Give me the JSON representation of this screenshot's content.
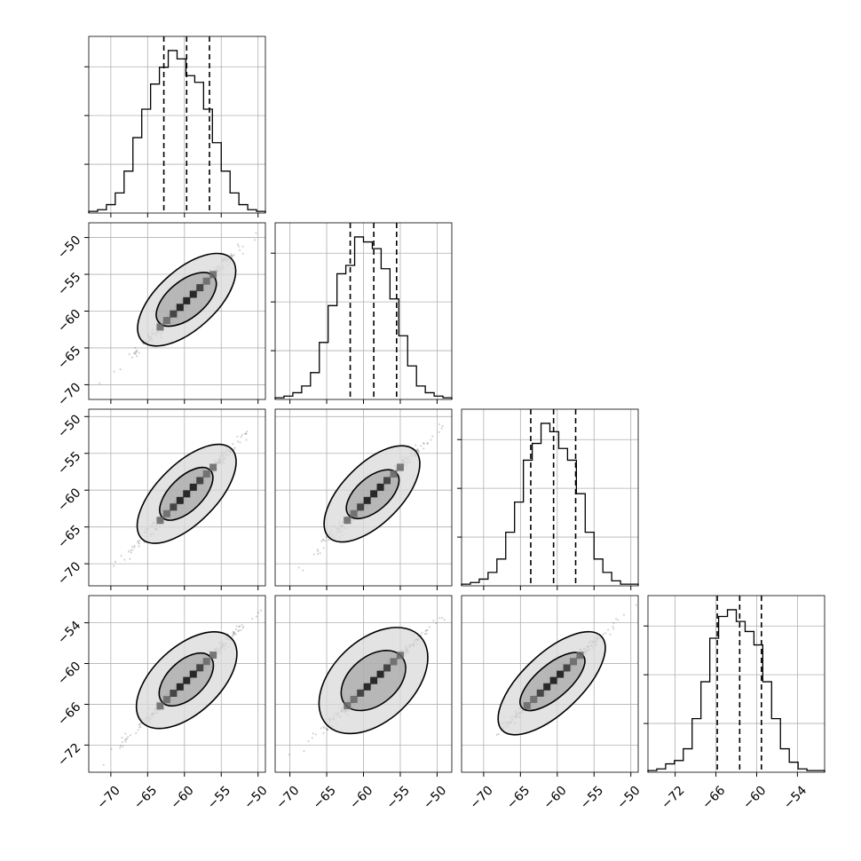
{
  "chart_data": {
    "type": "scatter",
    "kind": "corner-plot",
    "n_params": 4,
    "grid": true,
    "colors": {
      "line": "#000000",
      "grid": "#b0b0b0",
      "samples": "#555555",
      "frame": "#000000"
    },
    "axes": [
      {
        "range": [
          -73,
          -49
        ],
        "ticks": [
          -70,
          -65,
          -60,
          -55,
          -50
        ],
        "tick_labels": [
          "−70",
          "−65",
          "−60",
          "−55",
          "−50"
        ]
      },
      {
        "range": [
          -72,
          -48
        ],
        "ticks": [
          -70,
          -65,
          -60,
          -55,
          -50
        ],
        "tick_labels": [
          "−70",
          "−65",
          "−60",
          "−55",
          "−50"
        ]
      },
      {
        "range": [
          -73,
          -49
        ],
        "ticks": [
          -70,
          -65,
          -60,
          -55,
          -50
        ],
        "tick_labels": [
          "−70",
          "−65",
          "−60",
          "−55",
          "−50"
        ]
      },
      {
        "range": [
          -76,
          -50
        ],
        "ticks": [
          -72,
          -66,
          -60,
          -54
        ],
        "tick_labels": [
          "−72",
          "−66",
          "−60",
          "−54"
        ]
      }
    ],
    "histograms": [
      {
        "quantiles": [
          -62.8,
          -59.7,
          -56.6
        ],
        "counts": [
          1,
          2,
          5,
          12,
          25,
          45,
          62,
          77,
          87,
          97,
          92,
          82,
          78,
          62,
          42,
          25,
          12,
          5,
          2,
          1
        ]
      },
      {
        "quantiles": [
          -61.8,
          -58.6,
          -55.5
        ],
        "counts": [
          1,
          2,
          4,
          8,
          16,
          34,
          56,
          75,
          80,
          97,
          94,
          90,
          78,
          60,
          38,
          20,
          8,
          4,
          2,
          1
        ]
      },
      {
        "quantiles": [
          -63.6,
          -60.5,
          -57.5
        ],
        "counts": [
          1,
          2,
          4,
          8,
          16,
          32,
          50,
          75,
          85,
          97,
          92,
          82,
          75,
          55,
          32,
          16,
          8,
          3,
          1,
          1
        ]
      },
      {
        "quantiles": [
          -65.8,
          -62.5,
          -59.3
        ],
        "counts": [
          1,
          2,
          5,
          7,
          14,
          32,
          54,
          80,
          93,
          97,
          90,
          84,
          76,
          54,
          32,
          14,
          6,
          2,
          1,
          1
        ]
      }
    ],
    "pairs": [
      {
        "row": 1,
        "col": 0,
        "slope": 0.99,
        "center": [
          -59.7,
          -58.6
        ],
        "contours": [
          {
            "p1": [
              -65.8,
              -64.0
            ],
            "p2": [
              -53.6,
              -52.9
            ],
            "w": 0.8
          },
          {
            "p1": [
              -63.5,
              -61.5
            ],
            "p2": [
              -56.0,
              -55.3
            ],
            "w": 0.5
          }
        ]
      },
      {
        "row": 2,
        "col": 0,
        "slope": 1.0,
        "center": [
          -59.7,
          -60.5
        ],
        "contours": [
          {
            "p1": [
              -65.8,
              -66.6
            ],
            "p2": [
              -53.6,
              -54.4
            ],
            "w": 0.8
          },
          {
            "p1": [
              -63.0,
              -63.7
            ],
            "p2": [
              -56.5,
              -57.3
            ],
            "w": 0.45
          }
        ]
      },
      {
        "row": 2,
        "col": 1,
        "slope": 1.0,
        "center": [
          -58.6,
          -60.5
        ],
        "contours": [
          {
            "p1": [
              -64.7,
              -66.4
            ],
            "p2": [
              -53.0,
              -54.6
            ],
            "w": 0.8
          },
          {
            "p1": [
              -62.0,
              -63.4
            ],
            "p2": [
              -55.5,
              -57.7
            ],
            "w": 0.45
          }
        ]
      },
      {
        "row": 3,
        "col": 0,
        "slope": 1.04,
        "center": [
          -59.7,
          -62.5
        ],
        "contours": [
          {
            "p1": [
              -65.8,
              -68.6
            ],
            "p2": [
              -53.6,
              -56.3
            ],
            "w": 0.9
          },
          {
            "p1": [
              -63.0,
              -65.7
            ],
            "p2": [
              -56.5,
              -59.0
            ],
            "w": 0.5
          }
        ]
      },
      {
        "row": 3,
        "col": 1,
        "slope": 1.03,
        "center": [
          -58.6,
          -62.5
        ],
        "contours": [
          {
            "p1": [
              -65.0,
              -69.0
            ],
            "p2": [
              -52.3,
              -56.0
            ],
            "w": 1.1
          },
          {
            "p1": [
              -62.5,
              -66.0
            ],
            "p2": [
              -54.8,
              -59.0
            ],
            "w": 0.65
          }
        ]
      },
      {
        "row": 3,
        "col": 2,
        "slope": 1.03,
        "center": [
          -60.5,
          -62.5
        ],
        "contours": [
          {
            "p1": [
              -67.5,
              -69.8
            ],
            "p2": [
              -54.0,
              -56.0
            ],
            "w": 0.8
          },
          {
            "p1": [
              -64.8,
              -66.5
            ],
            "p2": [
              -56.5,
              -58.8
            ],
            "w": 0.45
          }
        ]
      }
    ]
  }
}
